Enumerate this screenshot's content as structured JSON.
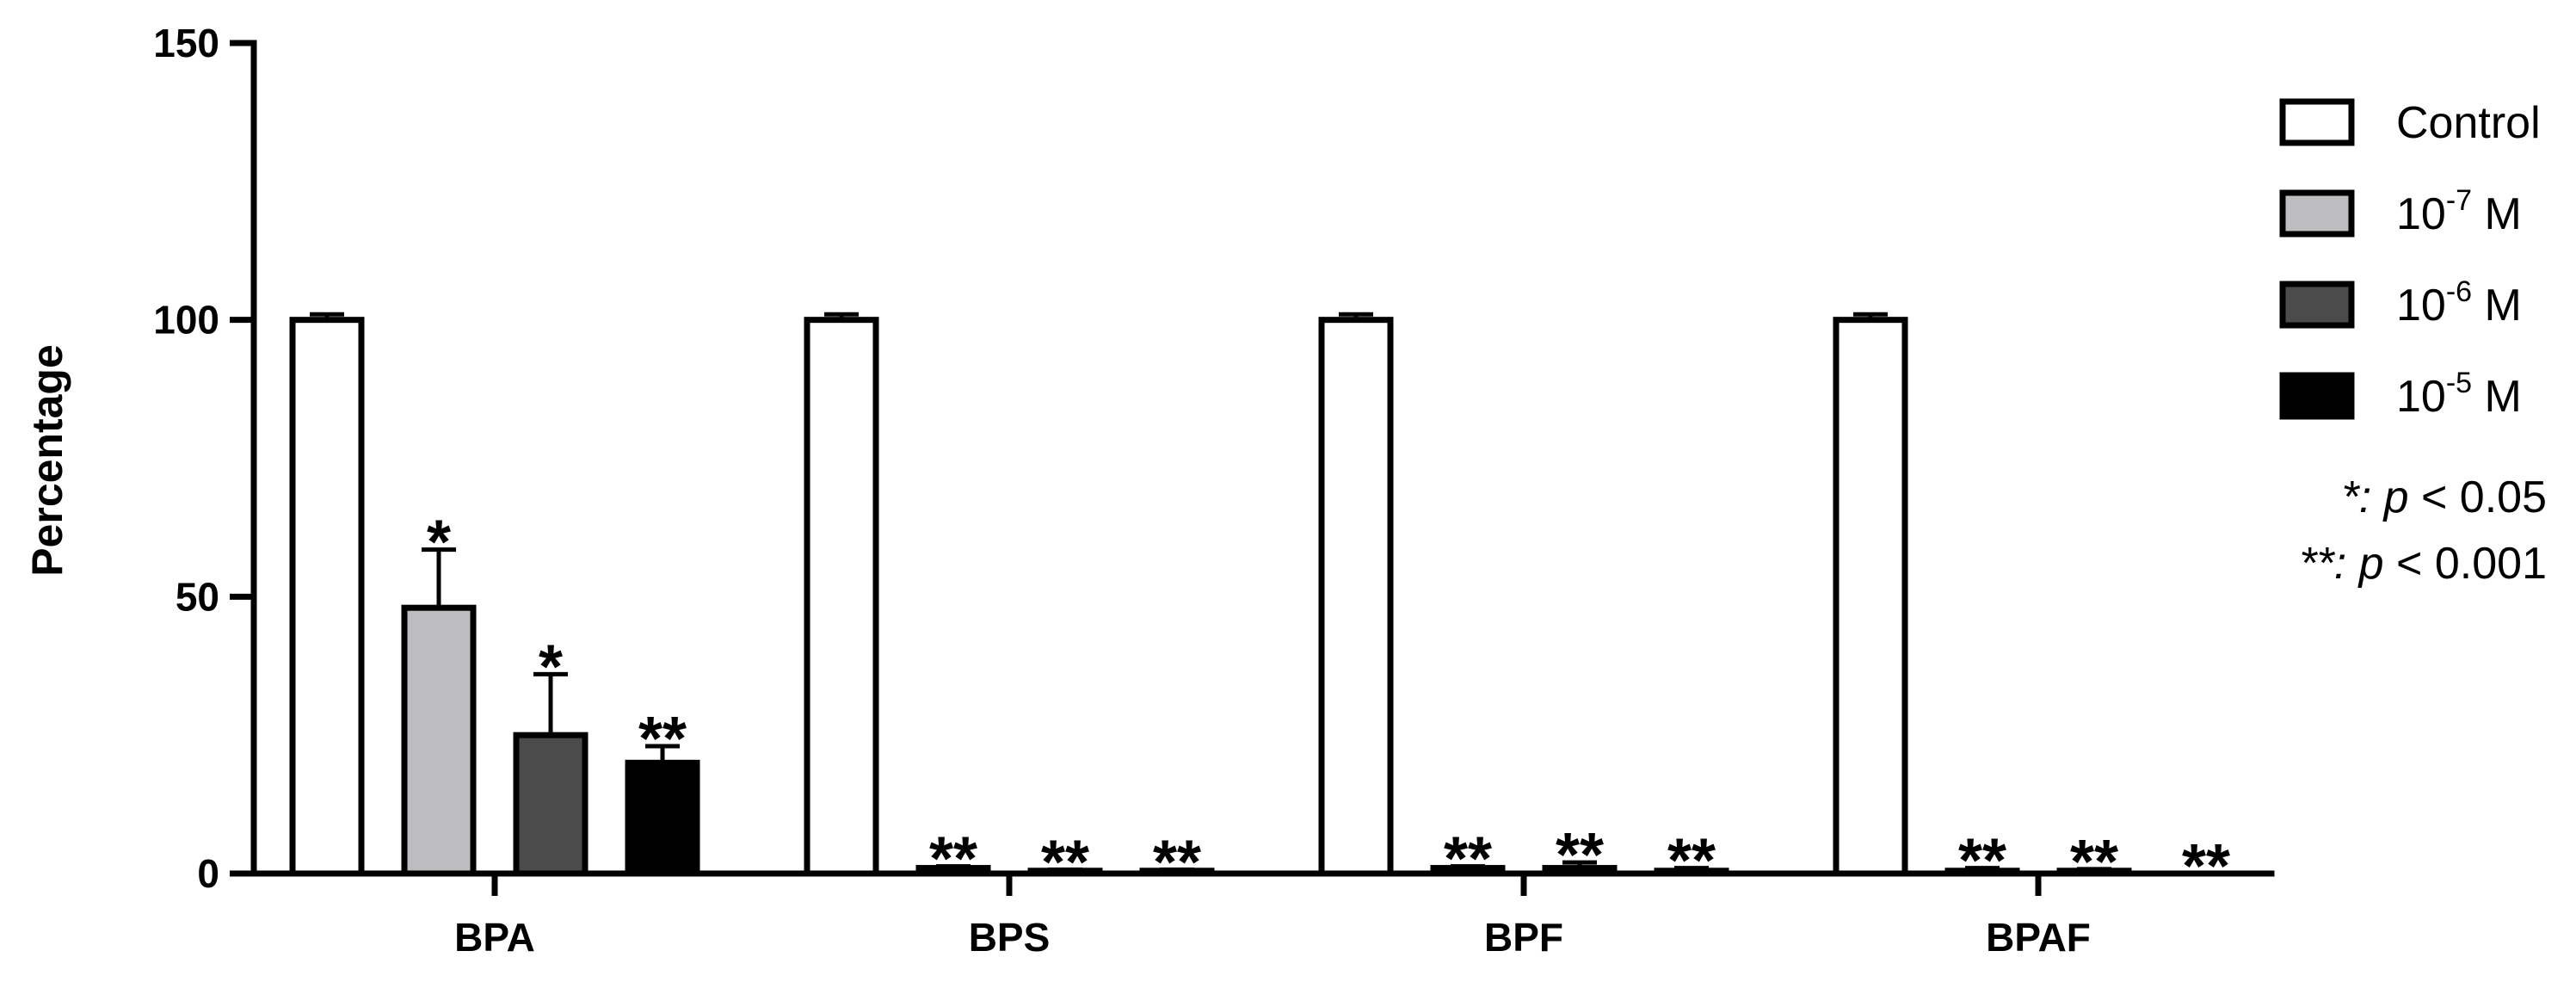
{
  "chart_data": {
    "type": "bar",
    "ylabel": "Percentage",
    "ylim": [
      0,
      150
    ],
    "yticks": [
      0,
      50,
      100,
      150
    ],
    "categories": [
      "BPA",
      "BPS",
      "BPF",
      "BPAF"
    ],
    "series": [
      {
        "name": "Control",
        "label_base": "Control",
        "label_exp": "",
        "label_unit": "",
        "color": "#ffffff",
        "values": [
          100,
          100,
          100,
          100
        ],
        "errors": [
          1,
          1,
          1,
          1
        ],
        "sig": [
          "",
          "",
          "",
          ""
        ]
      },
      {
        "name": "10-7 M",
        "label_base": "10",
        "label_exp": "-7",
        "label_unit": " M",
        "color": "#bdbdbf",
        "values": [
          48,
          1,
          1,
          0.5
        ],
        "errors": [
          10.5,
          0.3,
          0.3,
          0.5
        ],
        "sig": [
          "*",
          "**",
          "**",
          "**"
        ]
      },
      {
        "name": "10-6 M",
        "label_base": "10",
        "label_exp": "-6",
        "label_unit": " M",
        "color": "#4b4b4b",
        "values": [
          25,
          0.5,
          1,
          0.5
        ],
        "errors": [
          11,
          0.2,
          1,
          0.3
        ],
        "sig": [
          "*",
          "**",
          "**",
          "**"
        ]
      },
      {
        "name": "10-5 M",
        "label_base": "10",
        "label_exp": "-5",
        "label_unit": " M",
        "color": "#000000",
        "values": [
          20,
          0.5,
          0.5,
          0
        ],
        "errors": [
          3,
          0.2,
          0.5,
          0
        ],
        "sig": [
          "**",
          "**",
          "**",
          "**"
        ]
      }
    ],
    "annotations": [
      {
        "star": "*:",
        "p": "p",
        "rest": " < 0.05"
      },
      {
        "star": "**:",
        "p": "p",
        "rest": " < 0.001"
      }
    ],
    "legend_position": "right"
  }
}
